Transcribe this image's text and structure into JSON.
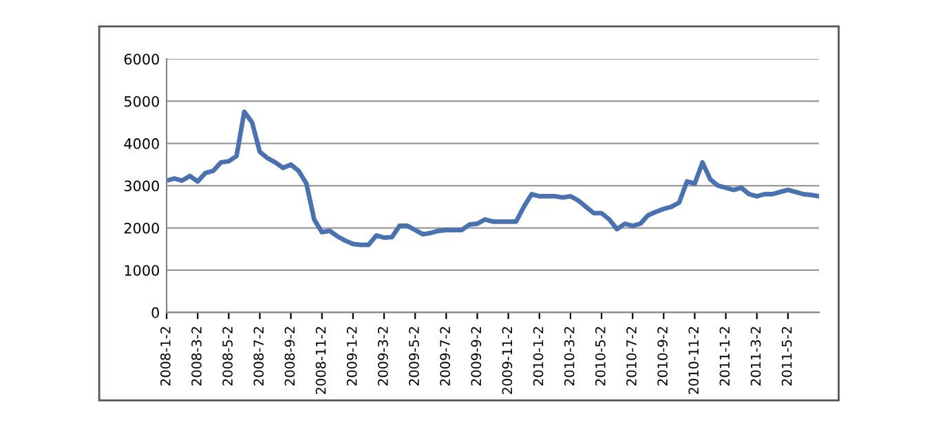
{
  "chart_data": {
    "type": "line",
    "categories": [
      "2008-1-2",
      null,
      null,
      null,
      "2008-3-2",
      null,
      null,
      null,
      "2008-5-2",
      null,
      null,
      null,
      "2008-7-2",
      null,
      null,
      null,
      "2008-9-2",
      null,
      null,
      null,
      "2008-11-2",
      null,
      null,
      null,
      "2009-1-2",
      null,
      null,
      null,
      "2009-3-2",
      null,
      null,
      null,
      "2009-5-2",
      null,
      null,
      null,
      "2009-7-2",
      null,
      null,
      null,
      "2009-9-2",
      null,
      null,
      null,
      "2009-11-2",
      null,
      null,
      null,
      "2010-1-2",
      null,
      null,
      null,
      "2010-3-2",
      null,
      null,
      null,
      "2010-5-2",
      null,
      null,
      null,
      "2010-7-2",
      null,
      null,
      null,
      "2010-9-2",
      null,
      null,
      null,
      "2010-11-2",
      null,
      null,
      null,
      "2011-1-2",
      null,
      null,
      null,
      "2011-3-2",
      null,
      null,
      null,
      "2011-5-2",
      null,
      null,
      null,
      null
    ],
    "series": [
      {
        "color": "#4a72b0",
        "values": [
          3120,
          3170,
          3120,
          3230,
          3100,
          3300,
          3350,
          3550,
          3580,
          3700,
          4750,
          4500,
          3800,
          3650,
          3550,
          3420,
          3500,
          3350,
          3050,
          2200,
          1900,
          1930,
          1800,
          1700,
          1620,
          1600,
          1600,
          1820,
          1770,
          1780,
          2050,
          2050,
          1950,
          1850,
          1880,
          1930,
          1950,
          1950,
          1950,
          2080,
          2100,
          2200,
          2150,
          2150,
          2150,
          2150,
          2500,
          2800,
          2750,
          2750,
          2750,
          2720,
          2750,
          2650,
          2500,
          2350,
          2350,
          2200,
          1970,
          2100,
          2050,
          2100,
          2300,
          2380,
          2450,
          2500,
          2600,
          3100,
          3050,
          3550,
          3150,
          3000,
          2950,
          2900,
          2950,
          2800,
          2750,
          2800,
          2800,
          2850,
          2900,
          2850,
          2800,
          2780,
          2750
        ]
      }
    ],
    "ylim": [
      0,
      6000
    ],
    "yticks": [
      0,
      1000,
      2000,
      3000,
      4000,
      5000,
      6000
    ],
    "grid": "y",
    "marker": "none",
    "line_style": "solid"
  }
}
